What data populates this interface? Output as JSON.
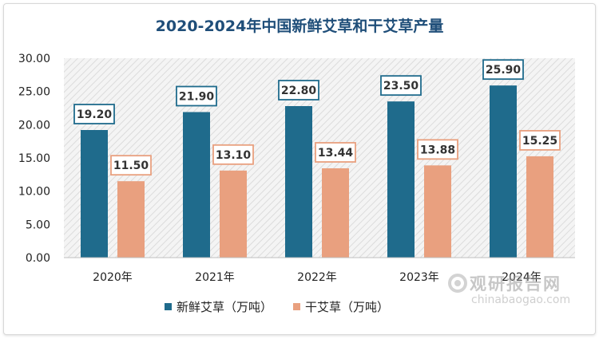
{
  "chart_data": {
    "type": "bar",
    "title": "2020-2024年中国新鲜艾草和干艾草产量",
    "categories": [
      "2020年",
      "2021年",
      "2022年",
      "2023年",
      "2024年"
    ],
    "series": [
      {
        "name": "新鲜艾草（万吨）",
        "values": [
          19.2,
          21.9,
          22.8,
          23.5,
          25.9
        ],
        "color": "#1f6b8c"
      },
      {
        "name": "干艾草（万吨）",
        "values": [
          11.5,
          13.1,
          13.44,
          13.88,
          15.25
        ],
        "color": "#e9a07f"
      }
    ],
    "ylim": [
      0,
      30
    ],
    "yticks": [
      "0.00",
      "5.00",
      "10.00",
      "15.00",
      "20.00",
      "25.00",
      "30.00"
    ],
    "xlabel": "",
    "ylabel": "",
    "legend_position": "bottom",
    "grid": false
  },
  "watermark": {
    "name": "观研报告网",
    "url": "chinabaogao.com"
  }
}
